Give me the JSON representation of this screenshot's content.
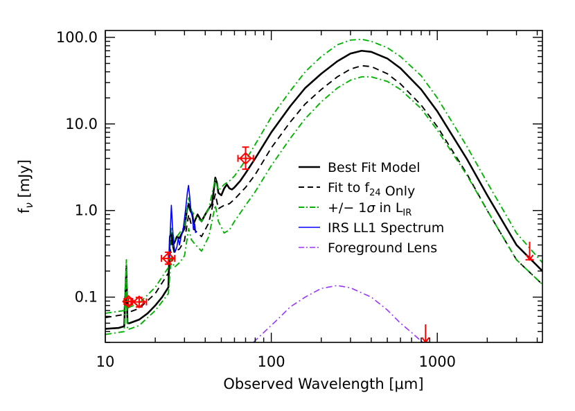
{
  "chart_data": {
    "type": "line",
    "xscale": "log",
    "yscale": "log",
    "xlim": [
      10,
      4300
    ],
    "ylim": [
      0.03,
      120
    ],
    "xlabel": "Observed Wavelength [μm]",
    "ylabel": "f_ν [mJy]",
    "x_ticks": [
      {
        "value": 10,
        "label": "10"
      },
      {
        "value": 100,
        "label": "100"
      },
      {
        "value": 1000,
        "label": "1000"
      }
    ],
    "y_ticks": [
      {
        "value": 0.1,
        "label": "0.1"
      },
      {
        "value": 1,
        "label": "1.0"
      },
      {
        "value": 10,
        "label": "10.0"
      },
      {
        "value": 100,
        "label": "100.0"
      }
    ],
    "legend": {
      "placement": "right-center",
      "entries": [
        {
          "series": "best_fit",
          "parts": [
            {
              "text": "Best Fit Model"
            }
          ]
        },
        {
          "series": "fit_f24",
          "parts": [
            {
              "text": "Fit to f"
            },
            {
              "text": "24",
              "sub": true
            },
            {
              "text": " Only"
            }
          ]
        },
        {
          "series": "sigma_upper",
          "parts": [
            {
              "text": "+/− 1"
            },
            {
              "text": "σ",
              "italic": true
            },
            {
              "text": " in L"
            },
            {
              "text": "IR",
              "sub": true
            }
          ]
        },
        {
          "series": "irs",
          "parts": [
            {
              "text": "IRS LL1 Spectrum"
            }
          ]
        },
        {
          "series": "lens",
          "parts": [
            {
              "text": "Foreground Lens"
            }
          ]
        }
      ]
    },
    "series": [
      {
        "id": "best_fit",
        "color": "#000000",
        "dash": "solid",
        "width": 2.6,
        "points": [
          [
            10,
            0.043
          ],
          [
            12,
            0.044
          ],
          [
            13,
            0.046
          ],
          [
            13.4,
            0.2
          ],
          [
            13.6,
            0.05
          ],
          [
            14,
            0.05
          ],
          [
            16,
            0.055
          ],
          [
            18,
            0.065
          ],
          [
            20,
            0.08
          ],
          [
            22,
            0.1
          ],
          [
            24,
            0.13
          ],
          [
            24.5,
            0.5
          ],
          [
            25,
            0.55
          ],
          [
            25.5,
            0.4
          ],
          [
            26,
            0.42
          ],
          [
            27,
            0.5
          ],
          [
            28,
            0.48
          ],
          [
            29,
            0.55
          ],
          [
            30,
            0.62
          ],
          [
            31,
            1.0
          ],
          [
            31.8,
            1.2
          ],
          [
            32.5,
            1.0
          ],
          [
            33.5,
            0.9
          ],
          [
            34,
            0.7
          ],
          [
            35,
            0.8
          ],
          [
            36,
            0.9
          ],
          [
            37,
            0.82
          ],
          [
            38,
            0.75
          ],
          [
            40,
            0.9
          ],
          [
            42,
            1.05
          ],
          [
            44,
            1.2
          ],
          [
            45,
            1.7
          ],
          [
            46,
            2.4
          ],
          [
            47,
            2.1
          ],
          [
            48,
            1.6
          ],
          [
            50,
            1.5
          ],
          [
            52,
            1.8
          ],
          [
            54,
            2.0
          ],
          [
            56,
            1.8
          ],
          [
            58,
            1.75
          ],
          [
            60,
            1.85
          ],
          [
            65,
            2.2
          ],
          [
            70,
            2.7
          ],
          [
            80,
            4.0
          ],
          [
            100,
            8.0
          ],
          [
            130,
            16
          ],
          [
            160,
            26
          ],
          [
            200,
            38
          ],
          [
            250,
            53
          ],
          [
            300,
            65
          ],
          [
            350,
            70
          ],
          [
            400,
            68
          ],
          [
            500,
            57
          ],
          [
            600,
            44
          ],
          [
            800,
            25
          ],
          [
            1000,
            14
          ],
          [
            1500,
            4.0
          ],
          [
            2000,
            1.5
          ],
          [
            3000,
            0.4
          ],
          [
            4300,
            0.2
          ]
        ]
      },
      {
        "id": "fit_f24",
        "color": "#000000",
        "dash": "9,6",
        "width": 1.9,
        "points": [
          [
            10,
            0.058
          ],
          [
            13,
            0.063
          ],
          [
            13.4,
            0.25
          ],
          [
            13.6,
            0.066
          ],
          [
            16,
            0.074
          ],
          [
            20,
            0.11
          ],
          [
            24,
            0.19
          ],
          [
            25,
            0.45
          ],
          [
            26,
            0.33
          ],
          [
            28,
            0.36
          ],
          [
            30,
            0.45
          ],
          [
            31.8,
            0.9
          ],
          [
            33,
            0.68
          ],
          [
            35,
            0.58
          ],
          [
            38,
            0.5
          ],
          [
            42,
            0.72
          ],
          [
            46,
            1.55
          ],
          [
            48,
            1.05
          ],
          [
            52,
            1.15
          ],
          [
            56,
            1.2
          ],
          [
            60,
            1.35
          ],
          [
            70,
            1.85
          ],
          [
            80,
            2.6
          ],
          [
            100,
            5.3
          ],
          [
            130,
            10.5
          ],
          [
            160,
            17
          ],
          [
            200,
            25
          ],
          [
            250,
            35
          ],
          [
            300,
            43
          ],
          [
            350,
            47
          ],
          [
            400,
            46
          ],
          [
            500,
            38
          ],
          [
            600,
            29
          ],
          [
            800,
            16.5
          ],
          [
            1000,
            9.3
          ],
          [
            1500,
            2.7
          ],
          [
            2000,
            1.0
          ],
          [
            3000,
            0.27
          ],
          [
            4300,
            0.14
          ]
        ]
      },
      {
        "id": "sigma_upper",
        "color": "#00b400",
        "dash": "9,4,2,4",
        "width": 1.9,
        "points": [
          [
            10,
            0.065
          ],
          [
            13,
            0.07
          ],
          [
            13.4,
            0.27
          ],
          [
            13.6,
            0.075
          ],
          [
            16,
            0.085
          ],
          [
            20,
            0.13
          ],
          [
            24,
            0.22
          ],
          [
            25,
            0.65
          ],
          [
            26,
            0.45
          ],
          [
            28,
            0.55
          ],
          [
            30,
            0.65
          ],
          [
            31.8,
            1.4
          ],
          [
            33,
            1.0
          ],
          [
            35,
            0.85
          ],
          [
            38,
            0.75
          ],
          [
            42,
            1.05
          ],
          [
            46,
            2.3
          ],
          [
            48,
            1.7
          ],
          [
            52,
            2.0
          ],
          [
            56,
            2.2
          ],
          [
            60,
            2.5
          ],
          [
            70,
            3.8
          ],
          [
            80,
            5.8
          ],
          [
            100,
            12
          ],
          [
            130,
            24
          ],
          [
            160,
            40
          ],
          [
            200,
            60
          ],
          [
            250,
            82
          ],
          [
            300,
            93
          ],
          [
            350,
            95
          ],
          [
            400,
            90
          ],
          [
            500,
            76
          ],
          [
            600,
            60
          ],
          [
            800,
            36
          ],
          [
            1000,
            20
          ],
          [
            1500,
            5.6
          ],
          [
            2000,
            2.1
          ],
          [
            3000,
            0.55
          ],
          [
            4300,
            0.25
          ]
        ]
      },
      {
        "id": "sigma_lower",
        "color": "#00b400",
        "dash": "9,4,2,4",
        "width": 1.9,
        "points": [
          [
            10,
            0.037
          ],
          [
            13,
            0.04
          ],
          [
            13.4,
            0.18
          ],
          [
            13.6,
            0.042
          ],
          [
            16,
            0.047
          ],
          [
            20,
            0.07
          ],
          [
            24,
            0.11
          ],
          [
            25,
            0.3
          ],
          [
            26,
            0.22
          ],
          [
            28,
            0.25
          ],
          [
            30,
            0.3
          ],
          [
            31.8,
            0.62
          ],
          [
            33,
            0.46
          ],
          [
            35,
            0.4
          ],
          [
            38,
            0.34
          ],
          [
            42,
            0.5
          ],
          [
            46,
            1.15
          ],
          [
            48,
            0.75
          ],
          [
            52,
            0.55
          ],
          [
            56,
            0.6
          ],
          [
            60,
            0.75
          ],
          [
            70,
            1.15
          ],
          [
            80,
            1.65
          ],
          [
            100,
            3.3
          ],
          [
            130,
            6.8
          ],
          [
            160,
            11.5
          ],
          [
            200,
            18
          ],
          [
            250,
            26
          ],
          [
            300,
            32
          ],
          [
            350,
            35
          ],
          [
            400,
            35
          ],
          [
            500,
            31
          ],
          [
            600,
            25
          ],
          [
            800,
            15
          ],
          [
            1000,
            8.5
          ],
          [
            1500,
            2.6
          ],
          [
            2000,
            1.0
          ],
          [
            3000,
            0.27
          ],
          [
            4300,
            0.14
          ]
        ]
      },
      {
        "id": "irs",
        "color": "#0000ff",
        "dash": "solid",
        "width": 1.6,
        "points": [
          [
            24.2,
            0.28
          ],
          [
            24.6,
            0.55
          ],
          [
            25,
            1.15
          ],
          [
            25.4,
            0.65
          ],
          [
            25.8,
            0.42
          ],
          [
            26.3,
            0.33
          ],
          [
            27,
            0.38
          ],
          [
            27.5,
            0.48
          ],
          [
            28,
            0.4
          ],
          [
            28.5,
            0.48
          ],
          [
            29.5,
            0.62
          ],
          [
            30.5,
            1.05
          ],
          [
            31.2,
            1.6
          ],
          [
            31.7,
            1.95
          ],
          [
            32.2,
            1.5
          ],
          [
            32.8,
            1.0
          ],
          [
            33.5,
            0.82
          ],
          [
            34,
            0.6
          ],
          [
            34.6,
            0.7
          ],
          [
            35,
            0.55
          ]
        ]
      },
      {
        "id": "lens",
        "color": "#9933ff",
        "dash": "9,4,2,4",
        "width": 1.6,
        "points": [
          [
            78,
            0.03
          ],
          [
            90,
            0.039
          ],
          [
            110,
            0.056
          ],
          [
            130,
            0.077
          ],
          [
            160,
            0.1
          ],
          [
            200,
            0.126
          ],
          [
            250,
            0.136
          ],
          [
            300,
            0.128
          ],
          [
            400,
            0.1
          ],
          [
            500,
            0.071
          ],
          [
            600,
            0.05
          ],
          [
            700,
            0.039
          ],
          [
            800,
            0.031
          ],
          [
            830,
            0.03
          ]
        ]
      }
    ],
    "data_points": {
      "color": "#ff0000",
      "points": [
        {
          "x": 13.8,
          "y": 0.089,
          "xerr": [
            13.0,
            14.6
          ],
          "yerr": [
            0.081,
            0.097
          ]
        },
        {
          "x": 16.0,
          "y": 0.088,
          "xerr": [
            14.3,
            17.7
          ],
          "yerr": [
            0.077,
            0.099
          ]
        },
        {
          "x": 24.0,
          "y": 0.28,
          "xerr": [
            21.8,
            26.2
          ],
          "yerr": [
            0.24,
            0.33
          ]
        },
        {
          "x": 70.0,
          "y": 4.0,
          "xerr": [
            63.0,
            78.0
          ],
          "yerr": [
            3.0,
            5.4
          ]
        }
      ],
      "upper_limits": [
        {
          "x": 850,
          "y": 0.03
        },
        {
          "x": 3600,
          "y": 0.27
        }
      ]
    }
  }
}
